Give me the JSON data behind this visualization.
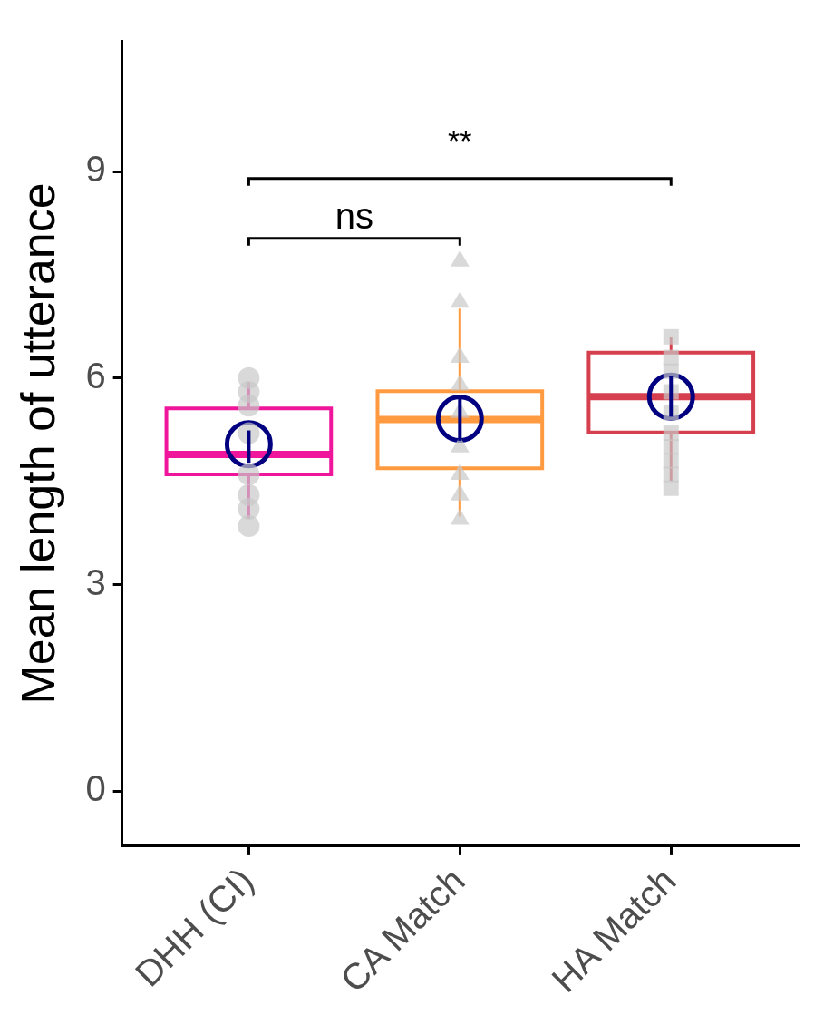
{
  "chart_data": {
    "type": "box",
    "ylabel": "Mean length of utterance",
    "categories": [
      "DHH (CI)",
      "CA Match",
      "HA Match"
    ],
    "ylim": [
      -0.8,
      10.9
    ],
    "yticks": [
      0,
      3,
      6,
      9
    ],
    "colors": [
      "#f0169b",
      "#ff9a40",
      "#d6404e"
    ],
    "boxes": [
      {
        "low": 3.96,
        "q1": 4.6,
        "median": 4.89,
        "q3": 5.56,
        "high": 5.94
      },
      {
        "low": 3.99,
        "q1": 4.69,
        "median": 5.4,
        "q3": 5.81,
        "high": 7.01
      },
      {
        "low": 4.51,
        "q1": 5.21,
        "median": 5.73,
        "q3": 6.37,
        "high": 6.6
      }
    ],
    "series": [
      {
        "type": "scatter",
        "marker": "circle",
        "color": "#c8c8c8",
        "x": [
          "DHH (CI)",
          "DHH (CI)",
          "DHH (CI)",
          "DHH (CI)",
          "DHH (CI)",
          "DHH (CI)",
          "DHH (CI)",
          "DHH (CI)",
          "DHH (CI)"
        ],
        "values": [
          6.0,
          5.8,
          5.6,
          5.2,
          null,
          4.6,
          4.3,
          4.1,
          3.85
        ]
      },
      {
        "type": "scatter",
        "marker": "triangle",
        "color": "#c8c8c8",
        "x": [
          "CA Match",
          "CA Match",
          "CA Match",
          "CA Match",
          "CA Match",
          "CA Match",
          "CA Match",
          "CA Match",
          "CA Match"
        ],
        "values": [
          7.7,
          7.1,
          6.3,
          5.9,
          5.5,
          5.0,
          4.6,
          4.3,
          3.95
        ]
      },
      {
        "type": "scatter",
        "marker": "square",
        "color": "#c8c8c8",
        "x": [
          "HA Match",
          "HA Match",
          "HA Match",
          "HA Match",
          "HA Match",
          "HA Match",
          "HA Match",
          "HA Match",
          "HA Match",
          "HA Match",
          "HA Match"
        ],
        "values": [
          6.6,
          null,
          6.3,
          6.1,
          5.8,
          5.5,
          5.2,
          5.0,
          4.8,
          4.6,
          4.4
        ]
      },
      {
        "type": "scatter",
        "marker": "circle",
        "color": "#000080",
        "x": [
          "DHH (CI)",
          "CA Match",
          "HA Match"
        ],
        "values": [
          5.04,
          5.41,
          5.73
        ],
        "errors": [
          [
            4.77,
            5.24
          ],
          [
            5.09,
            5.74
          ],
          [
            5.44,
            6.03
          ]
        ]
      }
    ],
    "annotations": [
      "ns",
      "**"
    ]
  }
}
